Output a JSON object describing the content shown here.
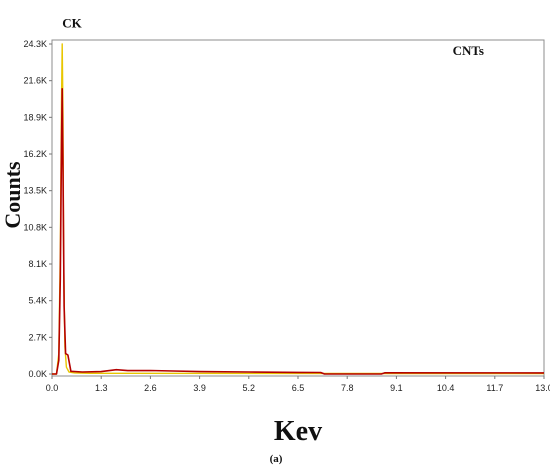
{
  "chart_data": {
    "type": "line",
    "title": "",
    "xlabel": "Kev",
    "ylabel": "Counts",
    "panel_label": "(a)",
    "x_ticks": [
      "0.0",
      "1.3",
      "2.6",
      "3.9",
      "5.2",
      "6.5",
      "7.8",
      "9.1",
      "10.4",
      "11.7",
      "13.0"
    ],
    "y_ticks": [
      "0.0K",
      "2.7K",
      "5.4K",
      "8.1K",
      "10.8K",
      "13.5K",
      "16.2K",
      "18.9K",
      "21.6K",
      "24.3K"
    ],
    "xlim": [
      0,
      13.0
    ],
    "ylim": [
      0,
      24300
    ],
    "annotations": [
      {
        "text": "CK",
        "x": 0.27,
        "y": 25500
      },
      {
        "text": "CNTs",
        "x": 11.0,
        "y": 23500
      }
    ],
    "series": [
      {
        "color": "#e8c600",
        "x": [
          0.0,
          0.12,
          0.18,
          0.22,
          0.25,
          0.27,
          0.29,
          0.31,
          0.34,
          0.38,
          0.45,
          0.6,
          1.0,
          13.0
        ],
        "y": [
          0,
          0,
          1500,
          9000,
          20000,
          24300,
          19000,
          8000,
          2000,
          500,
          150,
          80,
          50,
          30
        ]
      },
      {
        "color": "#b40000",
        "x": [
          0.0,
          0.12,
          0.18,
          0.22,
          0.25,
          0.27,
          0.29,
          0.32,
          0.36,
          0.42,
          0.5,
          0.8,
          1.3,
          1.7,
          2.0,
          2.6,
          3.2,
          3.9,
          5.2,
          6.5,
          7.1,
          7.2,
          8.7,
          8.8,
          13.0
        ],
        "y": [
          0,
          0,
          1000,
          7000,
          17000,
          21000,
          15000,
          5000,
          1500,
          1400,
          200,
          150,
          180,
          320,
          250,
          260,
          220,
          180,
          150,
          120,
          110,
          0,
          0,
          90,
          80
        ]
      }
    ]
  }
}
